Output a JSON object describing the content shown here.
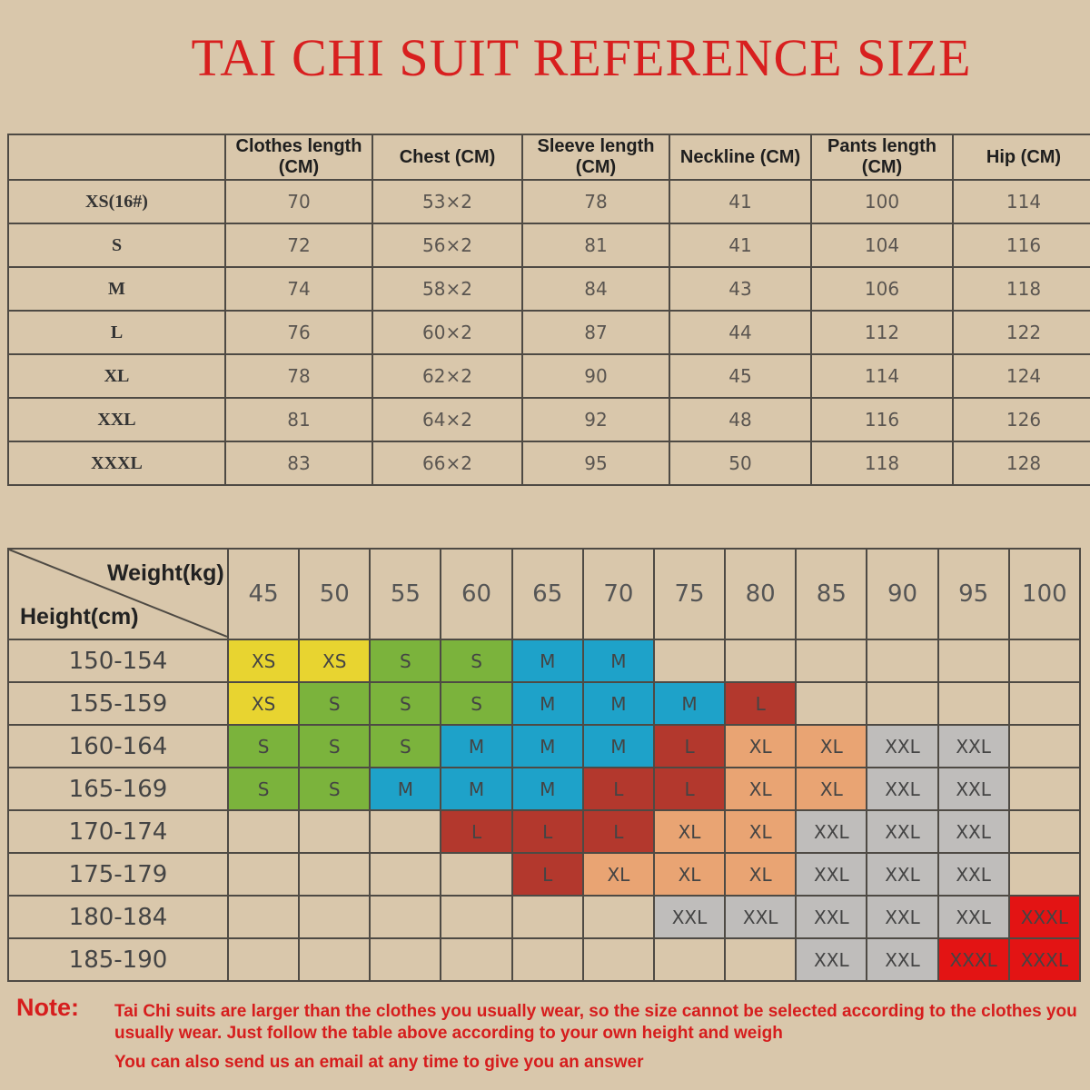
{
  "title": "TAI CHI SUIT REFERENCE SIZE",
  "size_table": {
    "header": [
      null,
      "Clothes length (CM)",
      "Chest (CM)",
      "Sleeve length (CM)",
      "Neckline (CM)",
      "Pants length (CM)",
      "Hip (CM)"
    ],
    "rows": [
      [
        "XS(16#)",
        "70",
        "53×2",
        "78",
        "41",
        "100",
        "114"
      ],
      [
        "S",
        "72",
        "56×2",
        "81",
        "41",
        "104",
        "116"
      ],
      [
        "M",
        "74",
        "58×2",
        "84",
        "43",
        "106",
        "118"
      ],
      [
        "L",
        "76",
        "60×2",
        "87",
        "44",
        "112",
        "122"
      ],
      [
        "XL",
        "78",
        "62×2",
        "90",
        "45",
        "114",
        "124"
      ],
      [
        "XXL",
        "81",
        "64×2",
        "92",
        "48",
        "116",
        "126"
      ],
      [
        "XXXL",
        "83",
        "66×2",
        "95",
        "50",
        "118",
        "128"
      ]
    ]
  },
  "fit_table": {
    "weight_label": "Weight(kg)",
    "height_label": "Height(cm)",
    "weights": [
      "45",
      "50",
      "55",
      "60",
      "65",
      "70",
      "75",
      "80",
      "85",
      "90",
      "95",
      "100"
    ],
    "heights": [
      "150-154",
      "155-159",
      "160-164",
      "165-169",
      "170-174",
      "175-179",
      "180-184",
      "185-190"
    ],
    "cells": [
      [
        "XS",
        "XS",
        "S",
        "S",
        "M",
        "M",
        null,
        null,
        null,
        null,
        null,
        null
      ],
      [
        "XS",
        "S",
        "S",
        "S",
        "M",
        "M",
        "M",
        "L",
        null,
        null,
        null,
        null
      ],
      [
        "S",
        "S",
        "S",
        "M",
        "M",
        "M",
        "L",
        "XL",
        "XL",
        "XXL",
        "XXL",
        null
      ],
      [
        "S",
        "S",
        "M",
        "M",
        "M",
        "L",
        "L",
        "XL",
        "XL",
        "XXL",
        "XXL",
        null
      ],
      [
        null,
        null,
        null,
        "L",
        "L",
        "L",
        "XL",
        "XL",
        "XXL",
        "XXL",
        "XXL",
        null
      ],
      [
        null,
        null,
        null,
        null,
        "L",
        "XL",
        "XL",
        "XL",
        "XXL",
        "XXL",
        "XXL",
        null
      ],
      [
        null,
        null,
        null,
        null,
        null,
        null,
        "XXL",
        "XXL",
        "XXL",
        "XXL",
        "XXL",
        "XXXL"
      ],
      [
        null,
        null,
        null,
        null,
        null,
        null,
        null,
        null,
        "XXL",
        "XXL",
        "XXXL",
        "XXXL"
      ]
    ],
    "cell_colors": {
      "XS": "#e8d430",
      "S": "#7bb33c",
      "M": "#1ea2c9",
      "L": "#b3382d",
      "XL": "#e9a473",
      "XXL": "#bfbdbb",
      "XXXL": "#e31414"
    }
  },
  "note": {
    "label": "Note:",
    "lines": [
      "Tai Chi suits are larger than the clothes you usually wear, so the size cannot be selected according to the clothes you usually wear. Just follow the table above according to your own height and weigh",
      "You can also send us an email at any time to give you an answer"
    ]
  }
}
